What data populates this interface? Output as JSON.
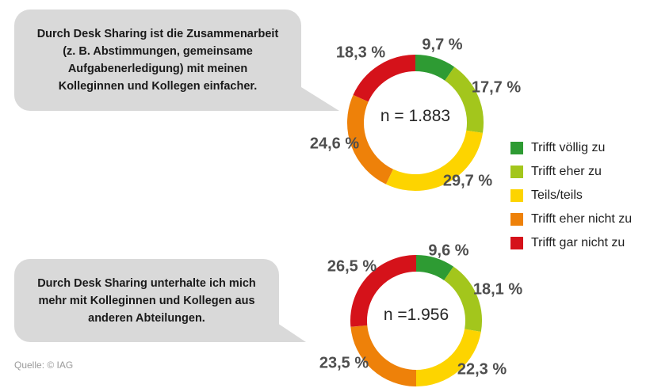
{
  "source": "Quelle: © IAG",
  "bubbles": [
    {
      "lines": [
        "Durch Desk Sharing ist die Zusammenarbeit",
        "(z. B. Abstimmungen, gemeinsame",
        "Aufgabenerledigung) mit meinen",
        "Kolleginnen und Kollegen einfacher."
      ]
    },
    {
      "lines": [
        "Durch Desk Sharing unterhalte ich mich",
        "mehr mit Kolleginnen und Kollegen aus",
        "anderen Abteilungen."
      ]
    }
  ],
  "legend": {
    "position": "right",
    "items": [
      {
        "label": "Trifft völlig zu",
        "color": "#2e9b33"
      },
      {
        "label": "Trifft eher zu",
        "color": "#a3c61c"
      },
      {
        "label": "Teils/teils",
        "color": "#fdd400"
      },
      {
        "label": "Trifft eher nicht zu",
        "color": "#ee8109"
      },
      {
        "label": "Trifft gar nicht zu",
        "color": "#d5121a"
      }
    ]
  },
  "chart_data": [
    {
      "type": "pie",
      "subtype": "donut",
      "question": "Durch Desk Sharing ist die Zusammenarbeit (z. B. Abstimmungen, gemeinsame Aufgabenerledigung) mit meinen Kolleginnen und Kollegen einfacher.",
      "n_label": "n = 1.883",
      "units": "%",
      "start_angle_deg": 0,
      "direction": "clockwise",
      "categories": [
        "Trifft völlig zu",
        "Trifft eher zu",
        "Teils/teils",
        "Trifft eher nicht zu",
        "Trifft gar nicht zu"
      ],
      "values": [
        9.7,
        17.7,
        29.7,
        24.6,
        18.3
      ],
      "labels": [
        "9,7 %",
        "17,7 %",
        "29,7 %",
        "24,6 %",
        "18,3 %"
      ],
      "colors": [
        "#2e9b33",
        "#a3c61c",
        "#fdd400",
        "#ee8109",
        "#d5121a"
      ]
    },
    {
      "type": "pie",
      "subtype": "donut",
      "question": "Durch Desk Sharing unterhalte ich mich mehr mit Kolleginnen und Kollegen aus anderen Abteilungen.",
      "n_label": "n =1.956",
      "units": "%",
      "start_angle_deg": 0,
      "direction": "clockwise",
      "categories": [
        "Trifft völlig zu",
        "Trifft eher zu",
        "Teils/teils",
        "Trifft eher nicht zu",
        "Trifft gar nicht zu"
      ],
      "values": [
        9.6,
        18.1,
        22.3,
        23.5,
        26.5
      ],
      "labels": [
        "9,6 %",
        "18,1 %",
        "22,3 %",
        "23,5 %",
        "26,5 %"
      ],
      "colors": [
        "#2e9b33",
        "#a3c61c",
        "#fdd400",
        "#ee8109",
        "#d5121a"
      ]
    }
  ]
}
